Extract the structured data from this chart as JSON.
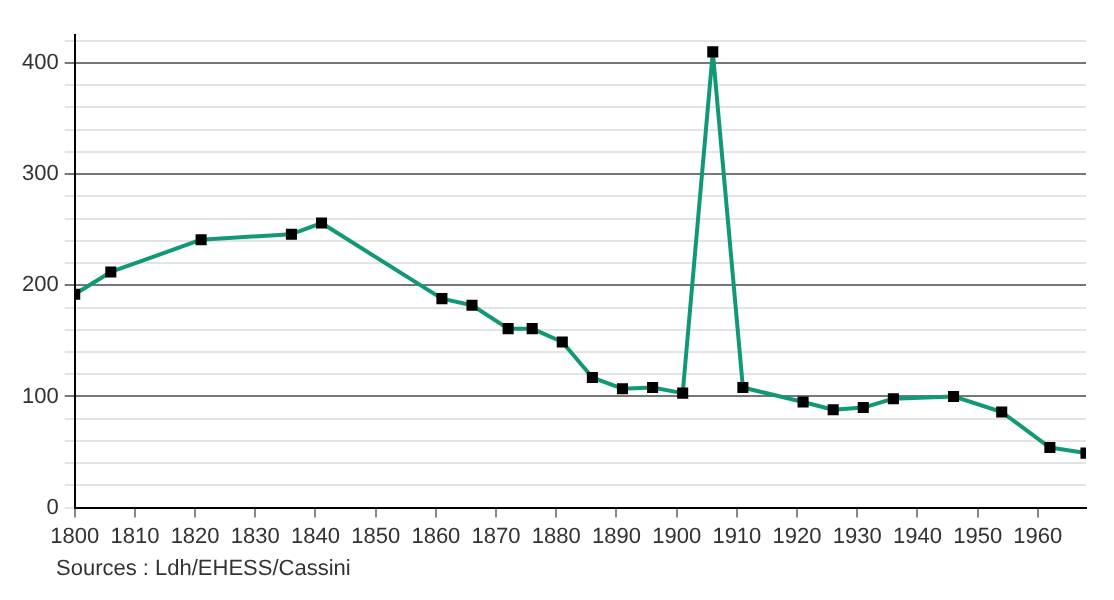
{
  "chart_data": {
    "type": "line",
    "x": [
      1800,
      1806,
      1821,
      1836,
      1841,
      1861,
      1866,
      1872,
      1876,
      1881,
      1886,
      1891,
      1896,
      1901,
      1906,
      1911,
      1921,
      1926,
      1931,
      1936,
      1946,
      1954,
      1962,
      1968
    ],
    "series": [
      {
        "color": "#119977",
        "values": [
          192,
          212,
          241,
          246,
          256,
          188,
          182,
          161,
          161,
          149,
          117,
          107,
          108,
          103,
          410,
          108,
          95,
          88,
          90,
          98,
          100,
          86,
          54,
          49
        ]
      }
    ],
    "xlim": [
      1800,
      1968
    ],
    "xticks": [
      1800,
      1810,
      1820,
      1830,
      1840,
      1850,
      1860,
      1870,
      1880,
      1890,
      1900,
      1910,
      1920,
      1930,
      1940,
      1950,
      1960
    ],
    "ylim": [
      0,
      425
    ],
    "yticks": [
      0,
      {
        "value": 20,
        "label": null
      },
      {
        "value": 40,
        "label": null
      },
      {
        "value": 60,
        "label": null
      },
      {
        "value": 80,
        "label": null
      },
      100,
      {
        "value": 120,
        "label": null
      },
      {
        "value": 140,
        "label": null
      },
      {
        "value": 160,
        "label": null
      },
      {
        "value": 180,
        "label": null
      },
      200,
      {
        "value": 220,
        "label": null
      },
      {
        "value": 240,
        "label": null
      },
      {
        "value": 260,
        "label": null
      },
      {
        "value": 280,
        "label": null
      },
      300,
      {
        "value": 320,
        "label": null
      },
      {
        "value": 340,
        "label": null
      },
      {
        "value": 360,
        "label": null
      },
      {
        "value": 380,
        "label": null
      },
      400,
      {
        "value": 420,
        "label": null
      }
    ],
    "grid": "y",
    "marker": "square",
    "legend": false,
    "annotations": [
      "Sources : Ldh/EHESS/Cassini"
    ]
  }
}
